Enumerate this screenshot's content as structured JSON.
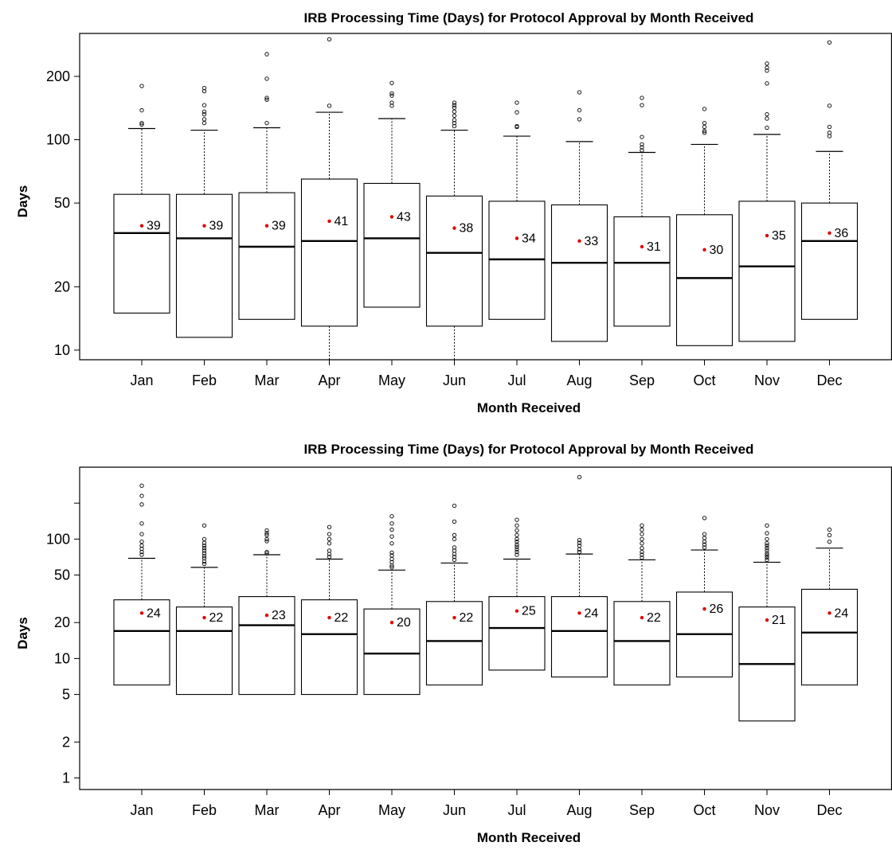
{
  "chart_data": [
    {
      "type": "boxplot",
      "title": "IRB Processing Time (Days) for Protocol Approval by Month Received",
      "xlabel": "Month Received",
      "ylabel": "Days",
      "y_scale": "log",
      "ylim": [
        9,
        320
      ],
      "y_ticks": [
        10,
        20,
        50,
        100,
        200
      ],
      "categories": [
        "Jan",
        "Feb",
        "Mar",
        "Apr",
        "May",
        "Jun",
        "Jul",
        "Aug",
        "Sep",
        "Oct",
        "Nov",
        "Dec"
      ],
      "boxes": [
        {
          "lo": 15,
          "q1": 15,
          "median": 36,
          "q3": 55,
          "hi": 113,
          "mean": 39,
          "outliers": [
            118,
            120,
            138,
            180
          ]
        },
        {
          "lo": 11.5,
          "q1": 11.5,
          "median": 34,
          "q3": 55,
          "hi": 111,
          "mean": 39,
          "outliers": [
            120,
            125,
            132,
            136,
            146,
            170,
            176
          ]
        },
        {
          "lo": 14,
          "q1": 14,
          "median": 31,
          "q3": 56,
          "hi": 114,
          "mean": 39,
          "outliers": [
            120,
            155,
            158,
            195,
            255
          ]
        },
        {
          "lo": 9,
          "q1": 13,
          "median": 33,
          "q3": 65,
          "hi": 135,
          "mean": 41,
          "outliers": [
            145,
            300
          ]
        },
        {
          "lo": 16,
          "q1": 16,
          "median": 34,
          "q3": 62,
          "hi": 126,
          "mean": 43,
          "outliers": [
            145,
            150,
            162,
            166,
            186
          ]
        },
        {
          "lo": 9,
          "q1": 13,
          "median": 29,
          "q3": 54,
          "hi": 111,
          "mean": 38,
          "outliers": [
            116,
            120,
            124,
            130,
            136,
            142,
            146,
            150
          ]
        },
        {
          "lo": 14,
          "q1": 14,
          "median": 27,
          "q3": 51,
          "hi": 104,
          "mean": 34,
          "outliers": [
            115,
            116,
            135,
            150
          ]
        },
        {
          "lo": 11,
          "q1": 11,
          "median": 26,
          "q3": 49,
          "hi": 98,
          "mean": 33,
          "outliers": [
            125,
            138,
            168
          ]
        },
        {
          "lo": 13,
          "q1": 13,
          "median": 26,
          "q3": 43,
          "hi": 87,
          "mean": 31,
          "outliers": [
            89,
            92,
            95,
            103,
            146,
            158
          ]
        },
        {
          "lo": 10.5,
          "q1": 10.5,
          "median": 22,
          "q3": 44,
          "hi": 95,
          "mean": 30,
          "outliers": [
            108,
            110,
            115,
            120,
            140
          ]
        },
        {
          "lo": 11,
          "q1": 11,
          "median": 25,
          "q3": 51,
          "hi": 106,
          "mean": 35,
          "outliers": [
            114,
            126,
            132,
            185,
            213,
            220,
            230
          ]
        },
        {
          "lo": 14,
          "q1": 14,
          "median": 33,
          "q3": 50,
          "hi": 88,
          "mean": 36,
          "outliers": [
            104,
            108,
            115,
            145,
            290
          ]
        }
      ],
      "mean_labels": [
        "39",
        "39",
        "39",
        "41",
        "43",
        "38",
        "34",
        "33",
        "31",
        "30",
        "35",
        "36"
      ]
    },
    {
      "type": "boxplot",
      "title": "IRB Processing Time (Days) for Protocol Approval by Month Received",
      "xlabel": "Month Received",
      "ylabel": "Days",
      "y_scale": "log",
      "ylim": [
        0.8,
        400
      ],
      "y_ticks": [
        1,
        2,
        5,
        10,
        20,
        50,
        100
      ],
      "y_ticks_unlabeled": [
        200
      ],
      "categories": [
        "Jan",
        "Feb",
        "Mar",
        "Apr",
        "May",
        "Jun",
        "Jul",
        "Aug",
        "Sep",
        "Oct",
        "Nov",
        "Dec"
      ],
      "boxes": [
        {
          "lo": 6,
          "q1": 6,
          "median": 17,
          "q3": 31,
          "hi": 69,
          "mean": 24,
          "outliers": [
            74,
            78,
            83,
            88,
            95,
            110,
            135,
            195,
            230,
            280
          ]
        },
        {
          "lo": 5,
          "q1": 5,
          "median": 17,
          "q3": 27,
          "hi": 58,
          "mean": 22,
          "outliers": [
            62,
            65,
            69,
            72,
            76,
            80,
            84,
            88,
            93,
            100,
            130
          ]
        },
        {
          "lo": 5,
          "q1": 5,
          "median": 19,
          "q3": 33,
          "hi": 74,
          "mean": 23,
          "outliers": [
            76,
            78,
            96,
            100,
            108,
            112,
            118
          ]
        },
        {
          "lo": 5,
          "q1": 5,
          "median": 16,
          "q3": 31,
          "hi": 68,
          "mean": 22,
          "outliers": [
            71,
            75,
            80,
            92,
            100,
            110,
            126
          ]
        },
        {
          "lo": 5,
          "q1": 5,
          "median": 11,
          "q3": 26,
          "hi": 55,
          "mean": 20,
          "outliers": [
            58,
            60,
            64,
            68,
            73,
            77,
            92,
            105,
            120,
            135,
            155
          ]
        },
        {
          "lo": 6,
          "q1": 6,
          "median": 14,
          "q3": 30,
          "hi": 63,
          "mean": 22,
          "outliers": [
            67,
            71,
            75,
            80,
            85,
            100,
            108,
            140,
            190
          ]
        },
        {
          "lo": 8,
          "q1": 8,
          "median": 18,
          "q3": 33,
          "hi": 68,
          "mean": 25,
          "outliers": [
            74,
            78,
            82,
            86,
            90,
            95,
            100,
            108,
            118,
            130,
            145
          ]
        },
        {
          "lo": 7,
          "q1": 7,
          "median": 17,
          "q3": 33,
          "hi": 75,
          "mean": 24,
          "outliers": [
            78,
            82,
            88,
            93,
            98,
            330
          ]
        },
        {
          "lo": 6,
          "q1": 6,
          "median": 14,
          "q3": 30,
          "hi": 67,
          "mean": 22,
          "outliers": [
            70,
            74,
            78,
            84,
            92,
            100,
            110,
            120,
            130
          ]
        },
        {
          "lo": 7,
          "q1": 7,
          "median": 16,
          "q3": 36,
          "hi": 81,
          "mean": 26,
          "outliers": [
            85,
            90,
            95,
            102,
            110,
            150
          ]
        },
        {
          "lo": 3,
          "q1": 3,
          "median": 9,
          "q3": 27,
          "hi": 64,
          "mean": 21,
          "outliers": [
            67,
            70,
            73,
            76,
            80,
            84,
            88,
            92,
            100,
            112,
            130
          ]
        },
        {
          "lo": 6,
          "q1": 6,
          "median": 16.5,
          "q3": 38,
          "hi": 84,
          "mean": 24,
          "outliers": [
            95,
            108,
            120
          ]
        }
      ],
      "mean_labels": [
        "24",
        "22",
        "23",
        "22",
        "20",
        "22",
        "25",
        "24",
        "22",
        "26",
        "21",
        "24"
      ]
    }
  ]
}
